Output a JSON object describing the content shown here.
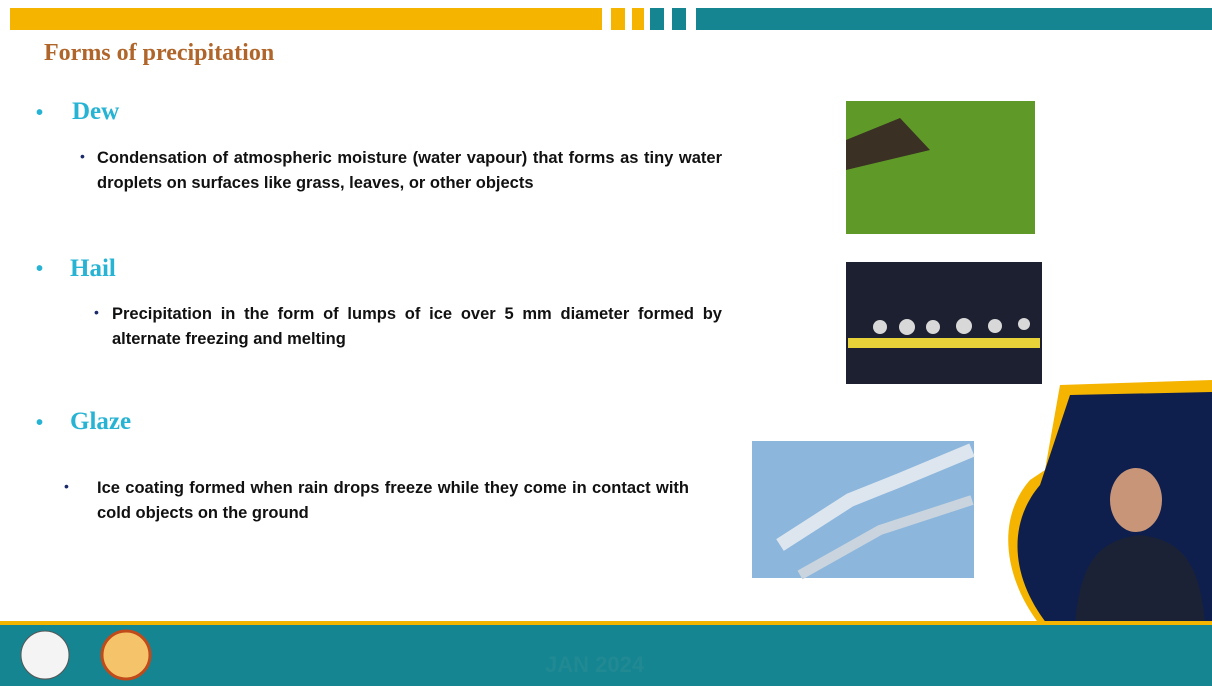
{
  "header": {
    "title": "Forms of precipitation"
  },
  "sections": [
    {
      "heading": "Dew",
      "text": "Condensation of atmospheric moisture (water vapour) that forms as tiny water droplets on surfaces like grass, leaves, or other objects"
    },
    {
      "heading": "Hail",
      "text": "Precipitation in the form of lumps of ice over 5 mm diameter formed by alternate freezing and melting"
    },
    {
      "heading": "Glaze",
      "text": "Ice coating formed when rain drops freeze while they come in contact with cold objects on the ground"
    }
  ],
  "footer": {
    "date": "JAN 2024"
  }
}
